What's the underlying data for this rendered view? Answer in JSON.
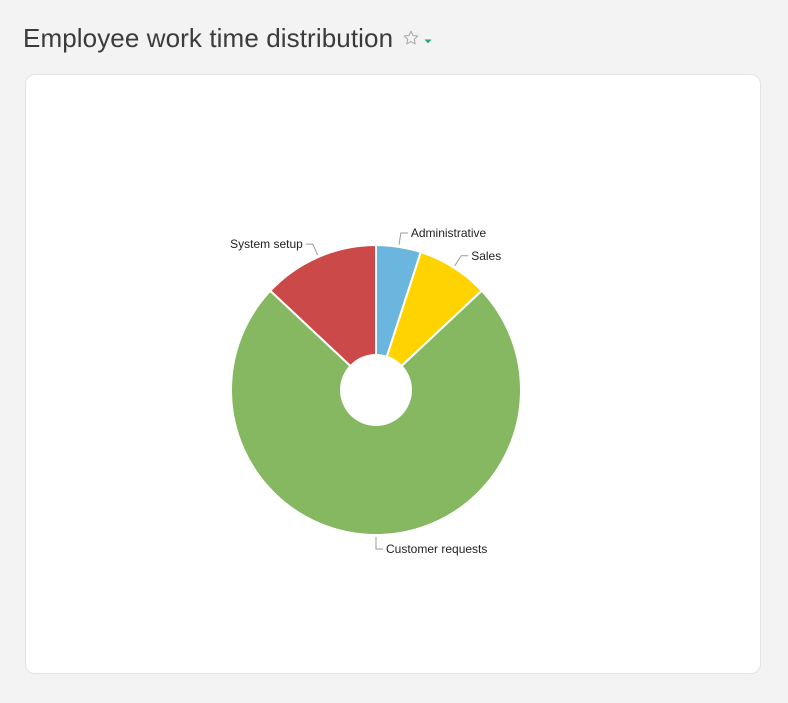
{
  "header": {
    "title": "Employee work time distribution",
    "favorite_icon": "star-outline-icon",
    "menu_icon": "caret-down-icon",
    "accent_color": "#1fa86a"
  },
  "chart_data": {
    "type": "pie",
    "title": "",
    "donut": true,
    "slices": [
      {
        "label": "Administrative",
        "value": 5,
        "color": "#6ab6de"
      },
      {
        "label": "Sales",
        "value": 8,
        "color": "#ffd300"
      },
      {
        "label": "Customer requests",
        "value": 74,
        "color": "#86b862"
      },
      {
        "label": "System setup",
        "value": 13,
        "color": "#cc4949"
      }
    ]
  }
}
